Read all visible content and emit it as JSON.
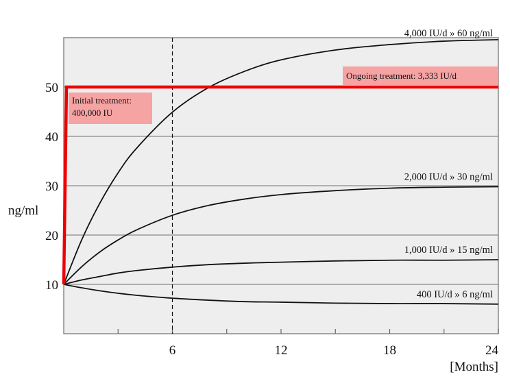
{
  "chart_data": {
    "type": "line",
    "title": "",
    "xlabel": "[Months]",
    "ylabel": "ng/ml",
    "xlim": [
      0,
      24
    ],
    "ylim": [
      0,
      60
    ],
    "x_ticks": [
      6,
      12,
      18,
      24
    ],
    "x_minor_ticks": [
      3,
      9,
      15,
      21
    ],
    "y_ticks": [
      10,
      20,
      30,
      40,
      50
    ],
    "grid": "horizontal",
    "reference_line": {
      "x": 6,
      "style": "dashed"
    },
    "colors": {
      "background": "#eeeeee",
      "curves": "#111111",
      "treatment": "#ee0000",
      "label_box": "#f5a3a3"
    },
    "x": [
      0,
      1,
      2,
      3,
      4,
      6,
      8,
      10,
      12,
      15,
      18,
      21,
      24
    ],
    "series": [
      {
        "name": "4,000 IU/d  » 60 ng/ml",
        "values": [
          10,
          19.1,
          26.5,
          32.6,
          37.5,
          44.9,
          49.9,
          53.2,
          55.5,
          57.5,
          58.6,
          59.3,
          59.6
        ]
      },
      {
        "name": "2,000 IU/d  » 30 ng/ml",
        "values": [
          10,
          13.6,
          16.6,
          19.0,
          21.0,
          24.0,
          26.0,
          27.3,
          28.2,
          29.0,
          29.5,
          29.7,
          29.8
        ]
      },
      {
        "name": "1,000 IU/d  » 15 ng/ml",
        "values": [
          10,
          10.9,
          11.6,
          12.3,
          12.8,
          13.5,
          14.0,
          14.3,
          14.5,
          14.75,
          14.9,
          14.9,
          15.0
        ]
      },
      {
        "name": "400 IU/d  » 6 ng/ml",
        "values": [
          10,
          9.3,
          8.7,
          8.2,
          7.8,
          7.2,
          6.8,
          6.5,
          6.4,
          6.2,
          6.1,
          6.1,
          6.0
        ]
      }
    ],
    "treatment_line": {
      "x": [
        0,
        0.15,
        24
      ],
      "values": [
        10,
        50,
        50
      ]
    },
    "annotations": {
      "initial_line1": "Initial treatment:",
      "initial_line2": "400,000 IU",
      "ongoing": "Ongoing  treatment: 3,333 IU/d"
    }
  }
}
